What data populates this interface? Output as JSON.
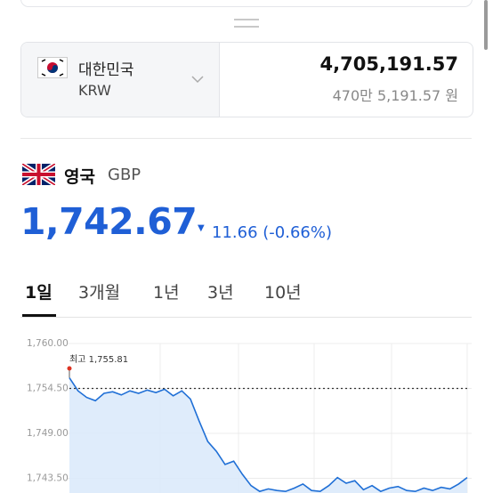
{
  "converter": {
    "from_country": "대한민국",
    "from_code": "KRW",
    "amount": "4,705,191.57",
    "amount_words": "470만 5,191.57 원"
  },
  "quote": {
    "country": "영국",
    "code": "GBP",
    "rate": "1,742.67",
    "change": "11.66 (-0.66%)"
  },
  "tabs": [
    "1일",
    "3개월",
    "1년",
    "3년",
    "10년"
  ],
  "chart_data": {
    "type": "line",
    "annotation": "최고 1,755.81",
    "reference_value": 1754.5,
    "ylim": [
      1741.7,
      1760
    ],
    "yticks": [
      {
        "value": 1760,
        "label": "1,760.00"
      },
      {
        "value": 1754.5,
        "label": "1,754.50"
      },
      {
        "value": 1749,
        "label": "1,749.00"
      },
      {
        "value": 1743.5,
        "label": "1,743.50"
      }
    ],
    "grid": true,
    "series": [
      {
        "color": "#1f6fd6",
        "values": [
          1755.8,
          1754.2,
          1753.4,
          1753.0,
          1753.9,
          1754.1,
          1753.7,
          1754.2,
          1753.9,
          1754.3,
          1754.0,
          1754.4,
          1753.6,
          1754.2,
          1753.2,
          1750.5,
          1748.0,
          1746.8,
          1745.2,
          1745.6,
          1744.0,
          1742.6,
          1741.9,
          1742.2,
          1742.0,
          1741.9,
          1742.3,
          1742.8,
          1742.0,
          1741.9,
          1742.6,
          1743.6,
          1742.9,
          1743.2,
          1742.1,
          1742.6,
          1741.9,
          1742.3,
          1742.5,
          1742.0,
          1741.9,
          1742.3,
          1742.0,
          1742.4,
          1742.2,
          1742.8,
          1743.6
        ]
      }
    ]
  }
}
